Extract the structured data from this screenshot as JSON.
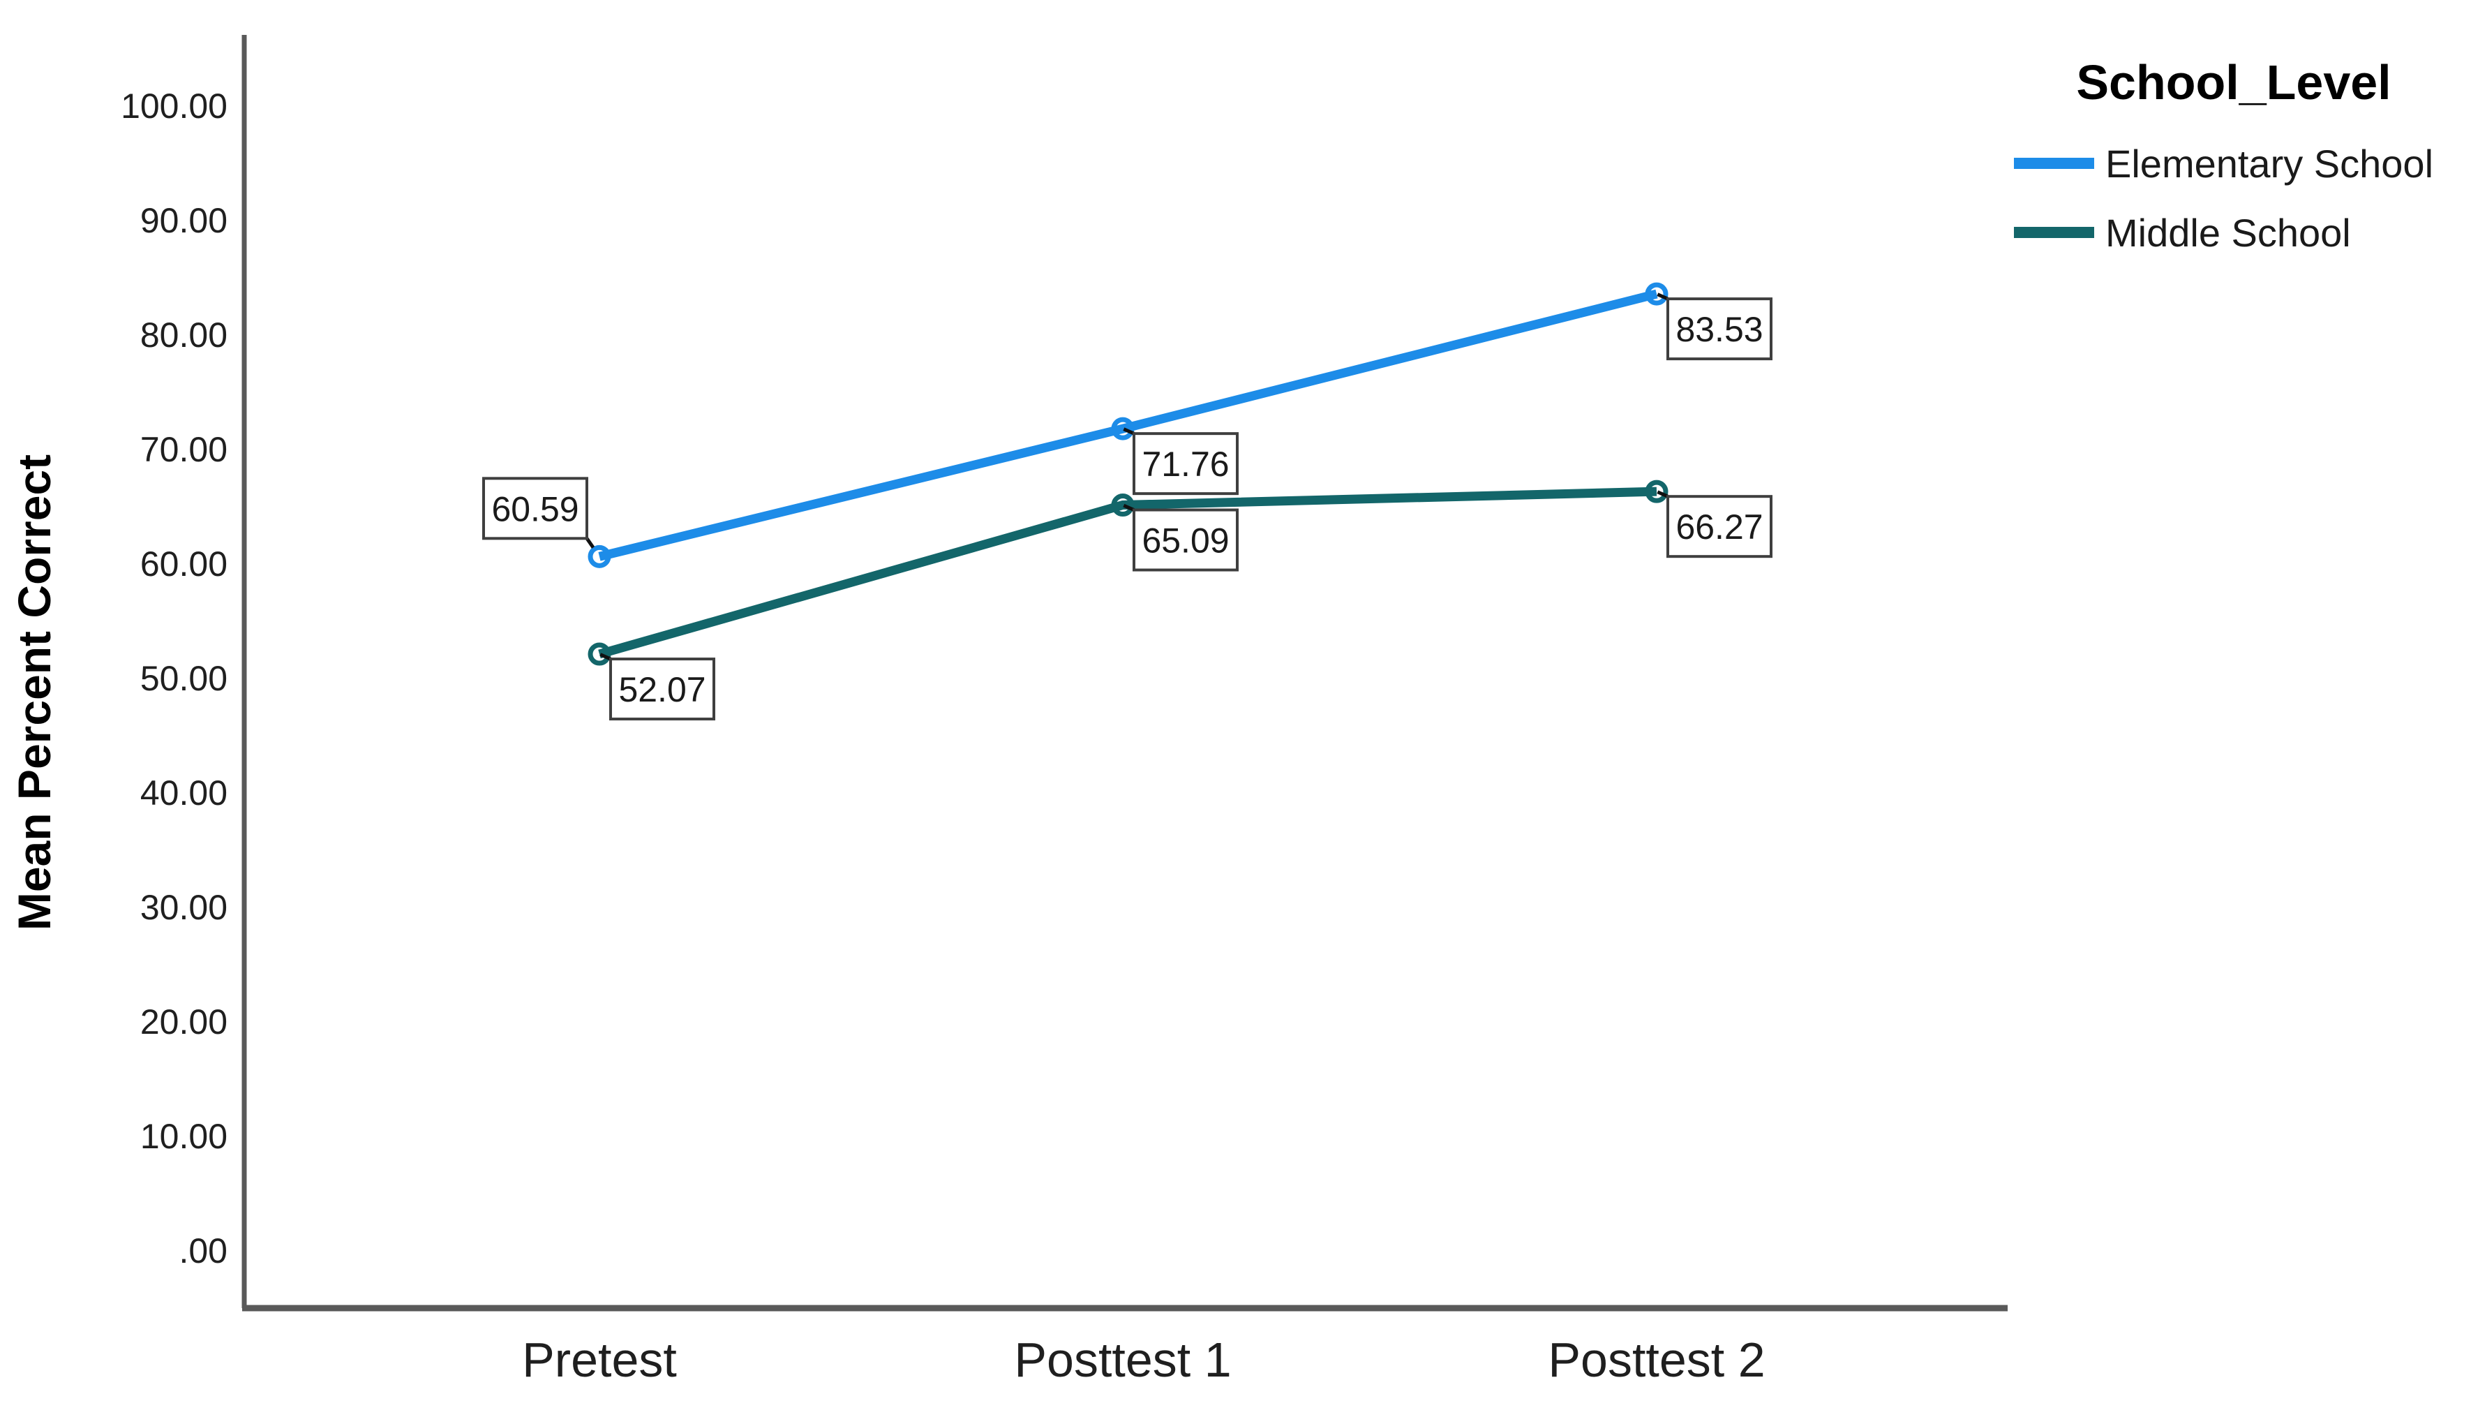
{
  "chart_data": {
    "type": "line",
    "title": "",
    "categories": [
      "Pretest",
      "Posttest 1",
      "Posttest 2"
    ],
    "xlabel": "",
    "ylabel": "Mean Percent Correct",
    "ylim": [
      0,
      100
    ],
    "ytick_step": 10,
    "ytick_labels": [
      ".00",
      "10.00",
      "20.00",
      "30.00",
      "40.00",
      "50.00",
      "60.00",
      "70.00",
      "80.00",
      "90.00",
      "100.00"
    ],
    "grid": false,
    "marker": "open-circle",
    "legend": {
      "title": "School_Level",
      "position": "top-right"
    },
    "series": [
      {
        "name": "Elementary School",
        "color": "#1D8CE8",
        "values": [
          60.59,
          71.76,
          83.53
        ],
        "labels": [
          "60.59",
          "71.76",
          "83.53"
        ]
      },
      {
        "name": "Middle School",
        "color": "#13666A",
        "values": [
          52.07,
          65.09,
          66.27
        ],
        "labels": [
          "52.07",
          "65.09",
          "66.27"
        ]
      }
    ],
    "colors": {
      "axis": "#595959",
      "tick_text": "#1f1f1f",
      "label_box_border": "#3f3f3f",
      "label_box_bg": "#ffffff",
      "title_text": "#000000"
    }
  }
}
